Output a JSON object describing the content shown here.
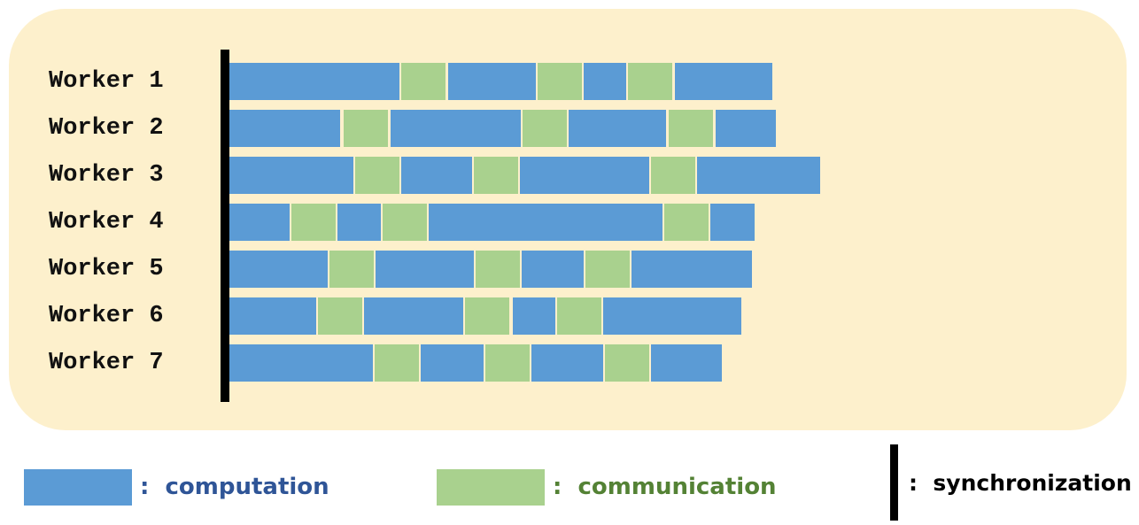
{
  "colors": {
    "computation": "#5b9bd5",
    "communication": "#a9d18e",
    "synchronization": "#000000",
    "computation_text": "#2f5597",
    "communication_text": "#548235",
    "panel": "#fdf0cc"
  },
  "workers": [
    {
      "label": "Worker 1",
      "segments": [
        {
          "type": "computation",
          "start": 0,
          "end": 192
        },
        {
          "type": "communication",
          "start": 194,
          "end": 244
        },
        {
          "type": "computation",
          "start": 247,
          "end": 346
        },
        {
          "type": "communication",
          "start": 348,
          "end": 398
        },
        {
          "type": "computation",
          "start": 400,
          "end": 448
        },
        {
          "type": "communication",
          "start": 450,
          "end": 500
        },
        {
          "type": "computation",
          "start": 503,
          "end": 613
        }
      ]
    },
    {
      "label": "Worker 2",
      "segments": [
        {
          "type": "computation",
          "start": 0,
          "end": 125
        },
        {
          "type": "communication",
          "start": 129,
          "end": 179
        },
        {
          "type": "computation",
          "start": 182,
          "end": 329
        },
        {
          "type": "communication",
          "start": 331,
          "end": 381
        },
        {
          "type": "computation",
          "start": 383,
          "end": 493
        },
        {
          "type": "communication",
          "start": 496,
          "end": 546
        },
        {
          "type": "computation",
          "start": 549,
          "end": 617
        }
      ]
    },
    {
      "label": "Worker 3",
      "segments": [
        {
          "type": "computation",
          "start": 0,
          "end": 140
        },
        {
          "type": "communication",
          "start": 142,
          "end": 192
        },
        {
          "type": "computation",
          "start": 194,
          "end": 274
        },
        {
          "type": "communication",
          "start": 276,
          "end": 326
        },
        {
          "type": "computation",
          "start": 328,
          "end": 474
        },
        {
          "type": "communication",
          "start": 476,
          "end": 526
        },
        {
          "type": "computation",
          "start": 528,
          "end": 667
        }
      ]
    },
    {
      "label": "Worker 4",
      "segments": [
        {
          "type": "computation",
          "start": 0,
          "end": 68
        },
        {
          "type": "communication",
          "start": 70,
          "end": 120
        },
        {
          "type": "computation",
          "start": 122,
          "end": 171
        },
        {
          "type": "communication",
          "start": 173,
          "end": 223
        },
        {
          "type": "computation",
          "start": 225,
          "end": 489
        },
        {
          "type": "communication",
          "start": 491,
          "end": 541
        },
        {
          "type": "computation",
          "start": 543,
          "end": 593
        }
      ]
    },
    {
      "label": "Worker 5",
      "segments": [
        {
          "type": "computation",
          "start": 0,
          "end": 111
        },
        {
          "type": "communication",
          "start": 113,
          "end": 163
        },
        {
          "type": "computation",
          "start": 165,
          "end": 276
        },
        {
          "type": "communication",
          "start": 278,
          "end": 328
        },
        {
          "type": "computation",
          "start": 330,
          "end": 400
        },
        {
          "type": "communication",
          "start": 402,
          "end": 452
        },
        {
          "type": "computation",
          "start": 454,
          "end": 590
        }
      ]
    },
    {
      "label": "Worker 6",
      "segments": [
        {
          "type": "computation",
          "start": 0,
          "end": 98
        },
        {
          "type": "communication",
          "start": 100,
          "end": 150
        },
        {
          "type": "computation",
          "start": 152,
          "end": 264
        },
        {
          "type": "communication",
          "start": 266,
          "end": 316
        },
        {
          "type": "computation",
          "start": 320,
          "end": 368
        },
        {
          "type": "communication",
          "start": 370,
          "end": 420
        },
        {
          "type": "computation",
          "start": 422,
          "end": 578
        }
      ]
    },
    {
      "label": "Worker 7",
      "segments": [
        {
          "type": "computation",
          "start": 0,
          "end": 162
        },
        {
          "type": "communication",
          "start": 164,
          "end": 214
        },
        {
          "type": "computation",
          "start": 216,
          "end": 287
        },
        {
          "type": "communication",
          "start": 289,
          "end": 339
        },
        {
          "type": "computation",
          "start": 341,
          "end": 422
        },
        {
          "type": "communication",
          "start": 424,
          "end": 474
        },
        {
          "type": "computation",
          "start": 476,
          "end": 556
        }
      ]
    }
  ],
  "legend": {
    "computation": ":  computation",
    "communication": ":  communication",
    "synchronization": ":  synchronization"
  }
}
